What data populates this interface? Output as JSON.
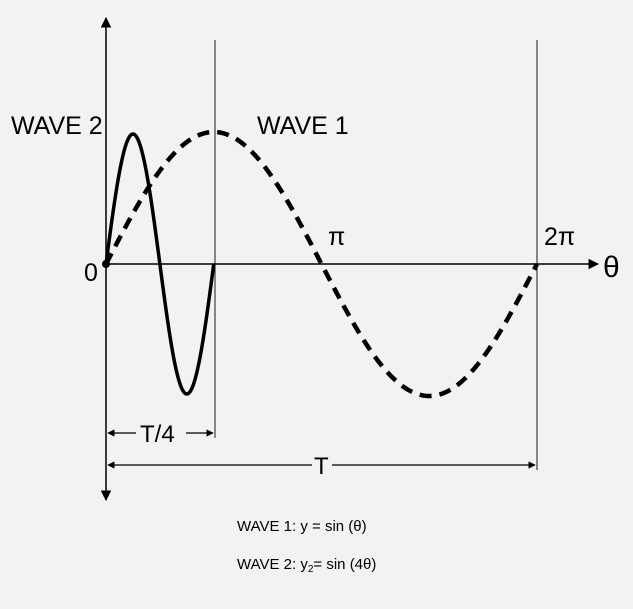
{
  "labels": {
    "wave2": "WAVE 2",
    "wave1": "WAVE 1",
    "origin": "0",
    "pi": "π",
    "two_pi": "2π",
    "theta": "θ",
    "quarter_period": "T/4",
    "period": "T"
  },
  "captions": {
    "wave1": {
      "prefix": "WAVE 1:  y = sin (θ)"
    },
    "wave2": {
      "prefix": "WAVE 2:  y",
      "subscript": "2",
      "suffix": "= sin (4θ)"
    }
  },
  "waves": [
    {
      "name": "WAVE 1",
      "frequency": 1,
      "domain": [
        0,
        "2π"
      ],
      "style": "dashed"
    },
    {
      "name": "WAVE 2",
      "frequency": 4,
      "domain": [
        0,
        "π/2"
      ],
      "style": "solid"
    }
  ],
  "colors": {
    "background": "#f2f2f2",
    "ink": "#000000"
  }
}
